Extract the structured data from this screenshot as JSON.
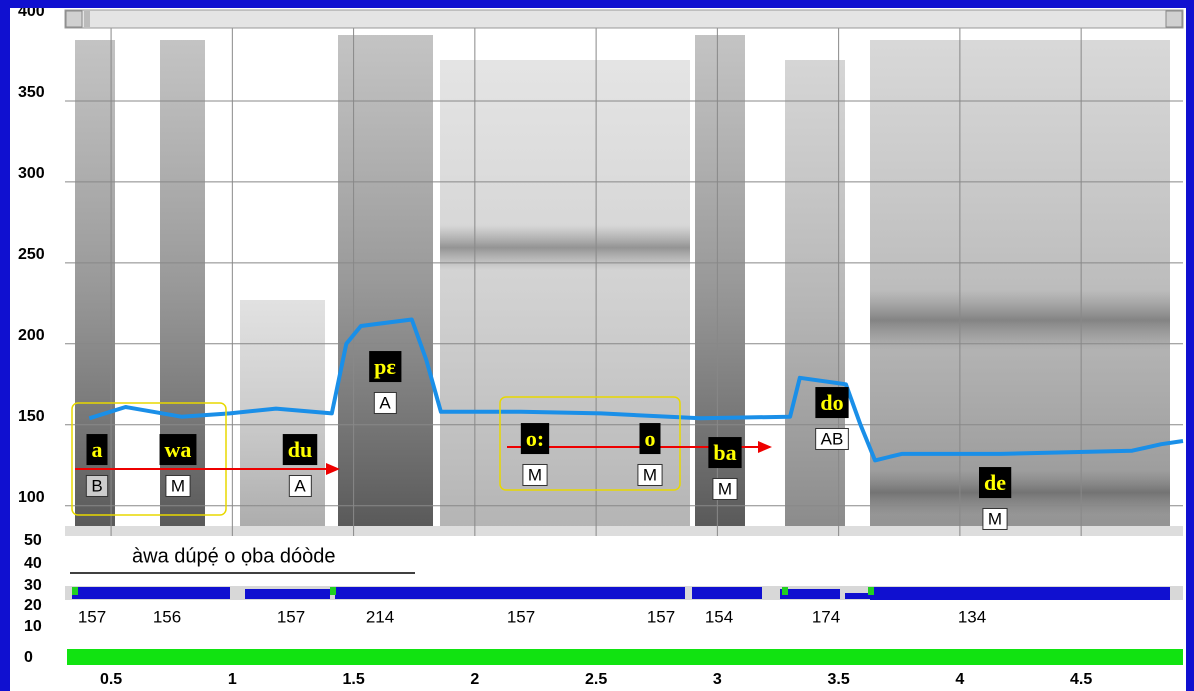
{
  "chart_data": {
    "type": "line",
    "x": [
      0.41,
      0.56,
      0.79,
      0.99,
      1.18,
      1.41,
      1.47,
      1.53,
      1.74,
      1.8,
      1.86,
      2.19,
      2.52,
      2.93,
      3.3,
      3.34,
      3.53,
      3.59,
      3.65,
      3.76,
      4.17,
      4.71,
      4.83,
      4.92
    ],
    "series": [
      {
        "color": "#1a8fe8",
        "values": [
          154,
          161,
          155,
          157,
          160,
          157,
          200,
          211,
          215,
          190,
          158,
          158,
          157,
          154,
          155,
          179,
          175,
          150,
          128,
          132,
          132,
          134,
          138,
          140
        ]
      }
    ],
    "xlim": [
      0.31,
      4.92
    ],
    "xticks": [
      0.5,
      1,
      1.5,
      2,
      2.5,
      3,
      3.5,
      4,
      4.5
    ],
    "ylim": [
      85,
      400
    ],
    "yticks": [
      100,
      150,
      200,
      250,
      300,
      350,
      400
    ],
    "grid": true,
    "annotations": [
      {
        "text": "a",
        "tone": "B"
      },
      {
        "text": "wa",
        "tone": "M"
      },
      {
        "text": "du",
        "tone": "A"
      },
      {
        "text": "pɛ",
        "tone": "A"
      },
      {
        "text": "o:",
        "tone": "M"
      },
      {
        "text": "o",
        "tone": "M"
      },
      {
        "text": "ba",
        "tone": "M"
      },
      {
        "text": "do",
        "tone": "AB"
      },
      {
        "text": "de",
        "tone": "M"
      }
    ]
  },
  "bottom_panel": {
    "yticks": [
      50,
      40,
      30,
      20,
      10,
      0
    ],
    "transcription": "àwa dúpẹ́ o ọba dóòde",
    "pitch_labels": [
      157,
      156,
      157,
      214,
      157,
      157,
      154,
      174,
      134
    ]
  }
}
